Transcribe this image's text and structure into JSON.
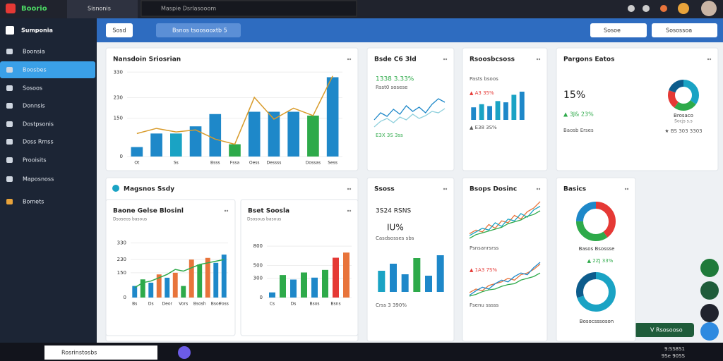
{
  "topbar": {
    "logo": "Boorio",
    "tab": "Sisnonis",
    "search": "Maspie Dsrlasooom"
  },
  "sidebar": {
    "title": "Sumponia",
    "items": [
      "Boonsia",
      "Boosbes",
      "Sosoos",
      "Donnsis",
      "Dostpsonis",
      "Doss Rmss",
      "Prooisits",
      "Maposnoss",
      "Bomets"
    ]
  },
  "toolbar": {
    "button": "Sosd",
    "filter": "Bsnos tsoosooxtb 5",
    "right": [
      "Sosoe",
      "Sosossoa"
    ]
  },
  "cards": [
    {
      "title": "Nansdoin Sriosrian",
      "texts": [],
      "charts": [
        {
          "type": "bar",
          "ylim": [
            0,
            350
          ],
          "yticks": [
            0,
            150,
            230,
            330
          ],
          "categories": [
            "Ot",
            null,
            "Ss",
            null,
            "Bsss",
            "Fssa",
            "Oess",
            "Dessss",
            null,
            "Dossas",
            "Sess"
          ],
          "values": [
            37,
            90,
            90,
            118,
            166,
            48,
            175,
            175,
            175,
            160,
            310
          ],
          "colors": [
            "#1e88c9",
            "#1e88c9",
            "#1aa3c4",
            "#1e88c9",
            "#1e88c9",
            "#2eaa4a",
            "#1e88c9",
            "#1e88c9",
            "#1e88c9",
            "#2eaa4a",
            "#1e88c9"
          ],
          "line": [
            90,
            110,
            96,
            104,
            68,
            48,
            231,
            146,
            189,
            160,
            315
          ],
          "line_color": "#d89b2b"
        }
      ]
    },
    {
      "title": "Bsde C6 3ld",
      "texts": [
        {
          "text": "1338 3.33%",
          "color": "#2eaa4a"
        },
        {
          "text": "Rsst0 sosese",
          "color": "#555"
        },
        {
          "text": "E3X 3S 3ss",
          "color": "#2eaa4a"
        }
      ],
      "charts": [
        {
          "type": "line",
          "series": [
            {
              "color": "#1e88c9",
              "values": [
                40,
                50,
                45,
                55,
                48,
                60,
                52,
                58,
                50,
                62,
                70,
                65
              ]
            },
            {
              "color": "#8fd0dc",
              "values": [
                30,
                38,
                42,
                36,
                44,
                40,
                48,
                42,
                46,
                52,
                50,
                56
              ]
            }
          ]
        }
      ]
    },
    {
      "title": "Rsoosbcsoss",
      "texts": [
        {
          "text": "Pasts bsoos",
          "color": "#555"
        },
        {
          "text": "▲ A3 35%",
          "color": "#e53935"
        },
        {
          "text": "▲ E38 3S%",
          "color": "#555"
        }
      ],
      "charts": [
        {
          "type": "bar",
          "values": [
            20,
            25,
            22,
            30,
            28,
            40,
            45
          ],
          "colors": [
            "#1e88c9",
            "#1aa3c4",
            "#1e88c9",
            "#1aa3c4",
            "#1e88c9",
            "#1aa3c4",
            "#1e88c9"
          ]
        }
      ]
    },
    {
      "title": "Pargons Eatos",
      "texts": [
        {
          "text": "15%",
          "color": "#222"
        },
        {
          "text": "▲ 3J& 23%",
          "color": "#2eaa4a"
        },
        {
          "text": "Baosb Erses",
          "color": "#555"
        },
        {
          "text": "Brosaco",
          "color": "#333"
        },
        {
          "text": "Socjs s.s",
          "color": "#777"
        },
        {
          "text": "★ BS 303 3303",
          "color": "#555"
        }
      ],
      "charts": [
        {
          "type": "donut",
          "values": [
            35,
            25,
            20,
            20
          ],
          "colors": [
            "#1aa3c4",
            "#2eaa4a",
            "#e53935",
            "#0d5c8c"
          ]
        }
      ]
    },
    {
      "title": "Magsnos Ssdy",
      "texts": [],
      "charts": [],
      "panels": [
        {
          "title": "Baone Gelse Blosinl",
          "texts": [
            {
              "text": "Dsoseos basous",
              "color": "#777"
            }
          ],
          "charts": [
            {
              "type": "bar",
              "ylim": [
                0,
                350
              ],
              "yticks": [
                0,
                150,
                230,
                330
              ],
              "categories": [
                "Bs",
                null,
                "Ds",
                null,
                "Deor",
                null,
                "Vors",
                null,
                "Bsosh",
                null,
                "Bsos",
                "Foss"
              ],
              "values": [
                70,
                110,
                90,
                140,
                120,
                150,
                70,
                230,
                200,
                240,
                210,
                260
              ],
              "colors": [
                "#1e88c9",
                "#2eaa4a",
                "#1e88c9",
                "#e8743b",
                "#1e88c9",
                "#e8743b",
                "#2eaa4a",
                "#e8743b",
                "#2eaa4a",
                "#e8743b",
                "#1e88c9",
                "#1e88c9"
              ],
              "line": [
                60,
                90,
                100,
                120,
                140,
                170,
                160,
                180,
                200,
                210,
                220,
                230
              ],
              "line_color": "#2eaa4a"
            }
          ]
        },
        {
          "title": "Bset Soosla",
          "texts": [
            {
              "text": "Dsosous basous",
              "color": "#777"
            }
          ],
          "charts": [
            {
              "type": "bar",
              "ylim": [
                0,
                900
              ],
              "yticks": [
                0,
                300,
                500,
                800
              ],
              "categories": [
                "Cs",
                null,
                "Ds",
                null,
                "Bsos",
                null,
                "Bsns",
                null
              ],
              "values": [
                80,
                350,
                280,
                390,
                310,
                430,
                620,
                700
              ],
              "colors": [
                "#1e88c9",
                "#2eaa4a",
                "#1e88c9",
                "#2eaa4a",
                "#1e88c9",
                "#2eaa4a",
                "#e53935",
                "#e8743b"
              ]
            }
          ]
        }
      ]
    },
    {
      "title": "Ssoss",
      "texts": [
        {
          "text": "3S24 RSNS",
          "color": "#222"
        },
        {
          "text": "IU%",
          "color": "#222"
        },
        {
          "text": "Casdsosses sbs",
          "color": "#555"
        },
        {
          "text": "Crss 3 390%",
          "color": "#555"
        }
      ],
      "charts": [
        {
          "type": "bar",
          "values": [
            300,
            400,
            250,
            480,
            230,
            520
          ],
          "colors": [
            "#1aa3c4",
            "#1e88c9",
            "#1e88c9",
            "#2eaa4a",
            "#1e88c9",
            "#1e88c9"
          ]
        }
      ]
    },
    {
      "title": "Bsops Dosinc",
      "texts": [
        {
          "text": "Psnsanrsrss",
          "color": "#555"
        },
        {
          "text": "▲ 1A3 7S%",
          "color": "#e53935"
        },
        {
          "text": "Fsenu sssss",
          "color": "#555"
        }
      ],
      "charts": [
        {
          "type": "line",
          "series": [
            {
              "color": "#e8743b",
              "values": [
                10,
                14,
                12,
                20,
                16,
                24,
                22,
                30,
                26,
                34,
                38,
                45
              ]
            },
            {
              "color": "#1aa3c4",
              "values": [
                8,
                12,
                16,
                14,
                22,
                18,
                26,
                24,
                32,
                28,
                36,
                40
              ]
            },
            {
              "color": "#2eaa4a",
              "values": [
                5,
                9,
                11,
                13,
                15,
                17,
                21,
                23,
                25,
                29,
                31,
                35
              ]
            }
          ]
        },
        {
          "type": "line",
          "series": [
            {
              "color": "#e8743b",
              "values": [
                8,
                12,
                10,
                16,
                18,
                20,
                24,
                22,
                28,
                30,
                34,
                40
              ]
            },
            {
              "color": "#1e88c9",
              "values": [
                5,
                10,
                14,
                12,
                18,
                22,
                20,
                26,
                30,
                28,
                36,
                42
              ]
            },
            {
              "color": "#2eaa4a",
              "values": [
                4,
                6,
                9,
                11,
                12,
                15,
                17,
                18,
                22,
                24,
                26,
                30
              ]
            }
          ]
        }
      ]
    },
    {
      "title": "Basics",
      "texts": [
        {
          "text": "Basos Bsossse",
          "color": "#333"
        },
        {
          "text": "▲ 2ZJ 33%",
          "color": "#2eaa4a"
        },
        {
          "text": "Bosocsssoson",
          "color": "#333"
        }
      ],
      "charts": [
        {
          "type": "donut",
          "values": [
            40,
            35,
            25
          ],
          "colors": [
            "#e53935",
            "#2eaa4a",
            "#1e88c9"
          ]
        },
        {
          "type": "donut",
          "values": [
            70,
            30
          ],
          "colors": [
            "#1aa3c4",
            "#0d5c8c"
          ]
        }
      ]
    }
  ],
  "toast": "V Rsosooso",
  "taskbar": {
    "search": "Rosrinstosbs",
    "time": "9:SS8S1",
    "date": "9Se 90SS"
  }
}
